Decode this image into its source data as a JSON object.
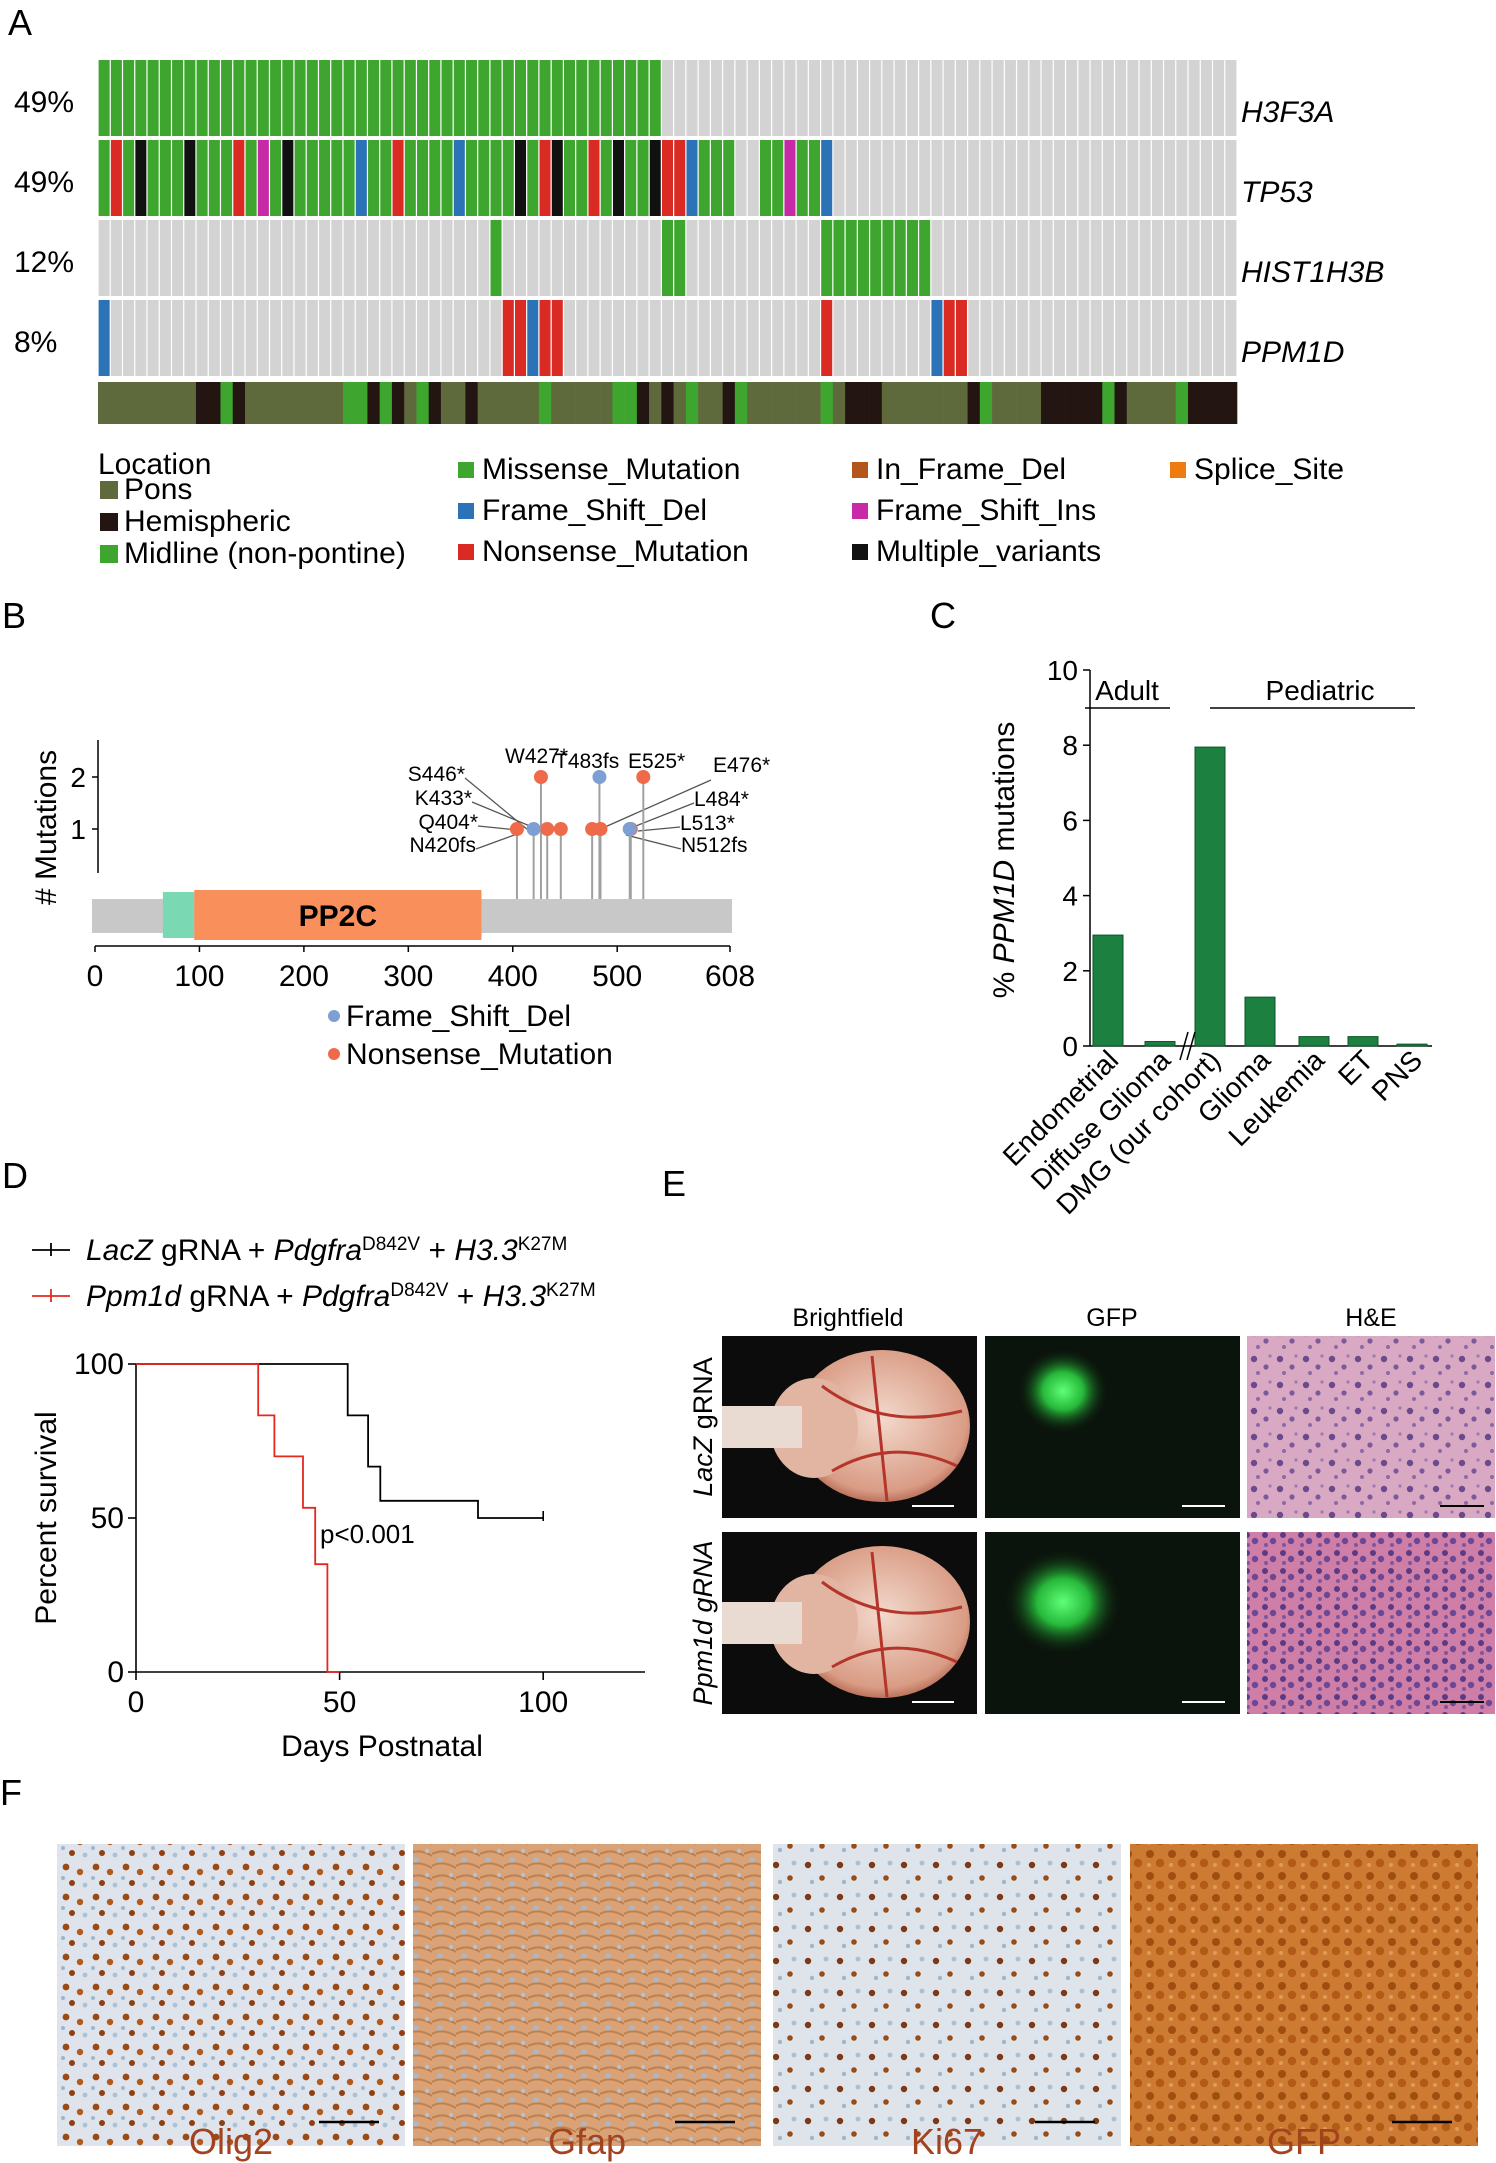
{
  "panels": {
    "a": "A",
    "b": "B",
    "c": "C",
    "d": "D",
    "e": "E",
    "f": "F"
  },
  "oncoprint": {
    "genes": [
      {
        "name": "H3F3A",
        "pct": "49%"
      },
      {
        "name": "TP53",
        "pct": "49%"
      },
      {
        "name": "HIST1H3B",
        "pct": "12%"
      },
      {
        "name": "PPM1D",
        "pct": "8%"
      }
    ],
    "legend": {
      "location_title": "Location",
      "location": [
        {
          "label": "Pons",
          "color": "#5e6a3c"
        },
        {
          "label": "Hemispheric",
          "color": "#231511"
        },
        {
          "label": "Midline (non-pontine)",
          "color": "#3ea62f"
        }
      ],
      "variants": [
        {
          "label": "Missense_Mutation",
          "color": "#3ea62f"
        },
        {
          "label": "Frame_Shift_Del",
          "color": "#2b72b6"
        },
        {
          "label": "Nonsense_Mutation",
          "color": "#d92b23"
        },
        {
          "label": "In_Frame_Del",
          "color": "#b5551e"
        },
        {
          "label": "Frame_Shift_Ins",
          "color": "#c72aa6"
        },
        {
          "label": "Multiple_variants",
          "color": "#111111"
        },
        {
          "label": "Splice_Site",
          "color": "#ef7b10"
        }
      ]
    }
  },
  "lollipop": {
    "ylabel": "# Mutations",
    "yticks": [
      "1",
      "2"
    ],
    "domain_label": "PP2C",
    "xticks": [
      "0",
      "100",
      "200",
      "300",
      "400",
      "500",
      "608"
    ],
    "length": 608,
    "mutations": [
      {
        "label": "W427*",
        "pos": 427,
        "count": 2,
        "type": "nonsense"
      },
      {
        "label": "T483fs",
        "pos": 483,
        "count": 2,
        "type": "fs"
      },
      {
        "label": "E525*",
        "pos": 525,
        "count": 2,
        "type": "nonsense"
      },
      {
        "label": "E476*",
        "pos": 476,
        "count": 1,
        "type": "nonsense"
      },
      {
        "label": "S446*",
        "pos": 446,
        "count": 1,
        "type": "nonsense"
      },
      {
        "label": "K433*",
        "pos": 433,
        "count": 1,
        "type": "nonsense"
      },
      {
        "label": "Q404*",
        "pos": 404,
        "count": 1,
        "type": "nonsense"
      },
      {
        "label": "N420fs",
        "pos": 420,
        "count": 1,
        "type": "fs"
      },
      {
        "label": "L484*",
        "pos": 484,
        "count": 1,
        "type": "nonsense"
      },
      {
        "label": "L513*",
        "pos": 513,
        "count": 1,
        "type": "nonsense"
      },
      {
        "label": "N512fs",
        "pos": 512,
        "count": 1,
        "type": "fs"
      }
    ],
    "legend": [
      {
        "label": "Frame_Shift_Del",
        "color": "#7e9fd3"
      },
      {
        "label": "Nonsense_Mutation",
        "color": "#ee6a4a"
      }
    ]
  },
  "chart_data": [
    {
      "type": "bar",
      "panel": "C",
      "ylabel_prefix": "% ",
      "ylabel_italic": "PPM1D",
      "ylabel_suffix": " mutations",
      "ylim": [
        0,
        10
      ],
      "yticks": [
        "0",
        "2",
        "4",
        "6",
        "8",
        "10"
      ],
      "groups": [
        {
          "label": "Adult"
        },
        {
          "label": "Pediatric"
        }
      ],
      "categories": [
        "Endometrial",
        "Diffuse Glioma",
        "DMG (our cohort)",
        "Glioma",
        "Leukemia",
        "ET",
        "PNS"
      ],
      "values": [
        2.95,
        0.12,
        7.95,
        1.3,
        0.25,
        0.25,
        0.05
      ],
      "color": "#1c8040"
    },
    {
      "type": "line",
      "panel": "D",
      "xlabel": "Days Postnatal",
      "ylabel": "Percent survival",
      "xlim": [
        0,
        125
      ],
      "ylim": [
        0,
        100
      ],
      "xticks": [
        "0",
        "50",
        "100"
      ],
      "yticks": [
        "0",
        "50",
        "100"
      ],
      "annotation": "p<0.001",
      "series": [
        {
          "color": "#000000",
          "legend": [
            "LacZ",
            " gRNA + ",
            "Pdgfra",
            "D842V",
            " + ",
            "H3.3",
            "K27M"
          ],
          "x": [
            0,
            52,
            52,
            57,
            57,
            60,
            60,
            63,
            63,
            84,
            84,
            100
          ],
          "y": [
            100,
            100,
            83.3,
            83.3,
            66.7,
            66.7,
            55.6,
            55.6,
            55.6,
            55.6,
            50,
            50
          ]
        },
        {
          "color": "#e5281e",
          "legend": [
            "Ppm1d",
            " gRNA + ",
            "Pdgfra",
            "D842V",
            " + ",
            "H3.3",
            "K27M"
          ],
          "x": [
            0,
            30,
            30,
            34,
            34,
            41,
            41,
            44,
            44,
            47,
            47,
            50
          ],
          "y": [
            100,
            100,
            83.3,
            83.3,
            70,
            70,
            53.3,
            53.3,
            35,
            35,
            0,
            0
          ]
        }
      ]
    }
  ],
  "imaging": {
    "columns": [
      "Brightfield",
      "GFP",
      "H&E"
    ],
    "rows": [
      {
        "label": "LacZ",
        "suffix": " gRNA"
      },
      {
        "label": "Ppm1d gRNA",
        "suffix": ""
      }
    ]
  },
  "ihc": [
    "Olig2",
    "Gfap",
    "Ki67",
    "GFP"
  ]
}
